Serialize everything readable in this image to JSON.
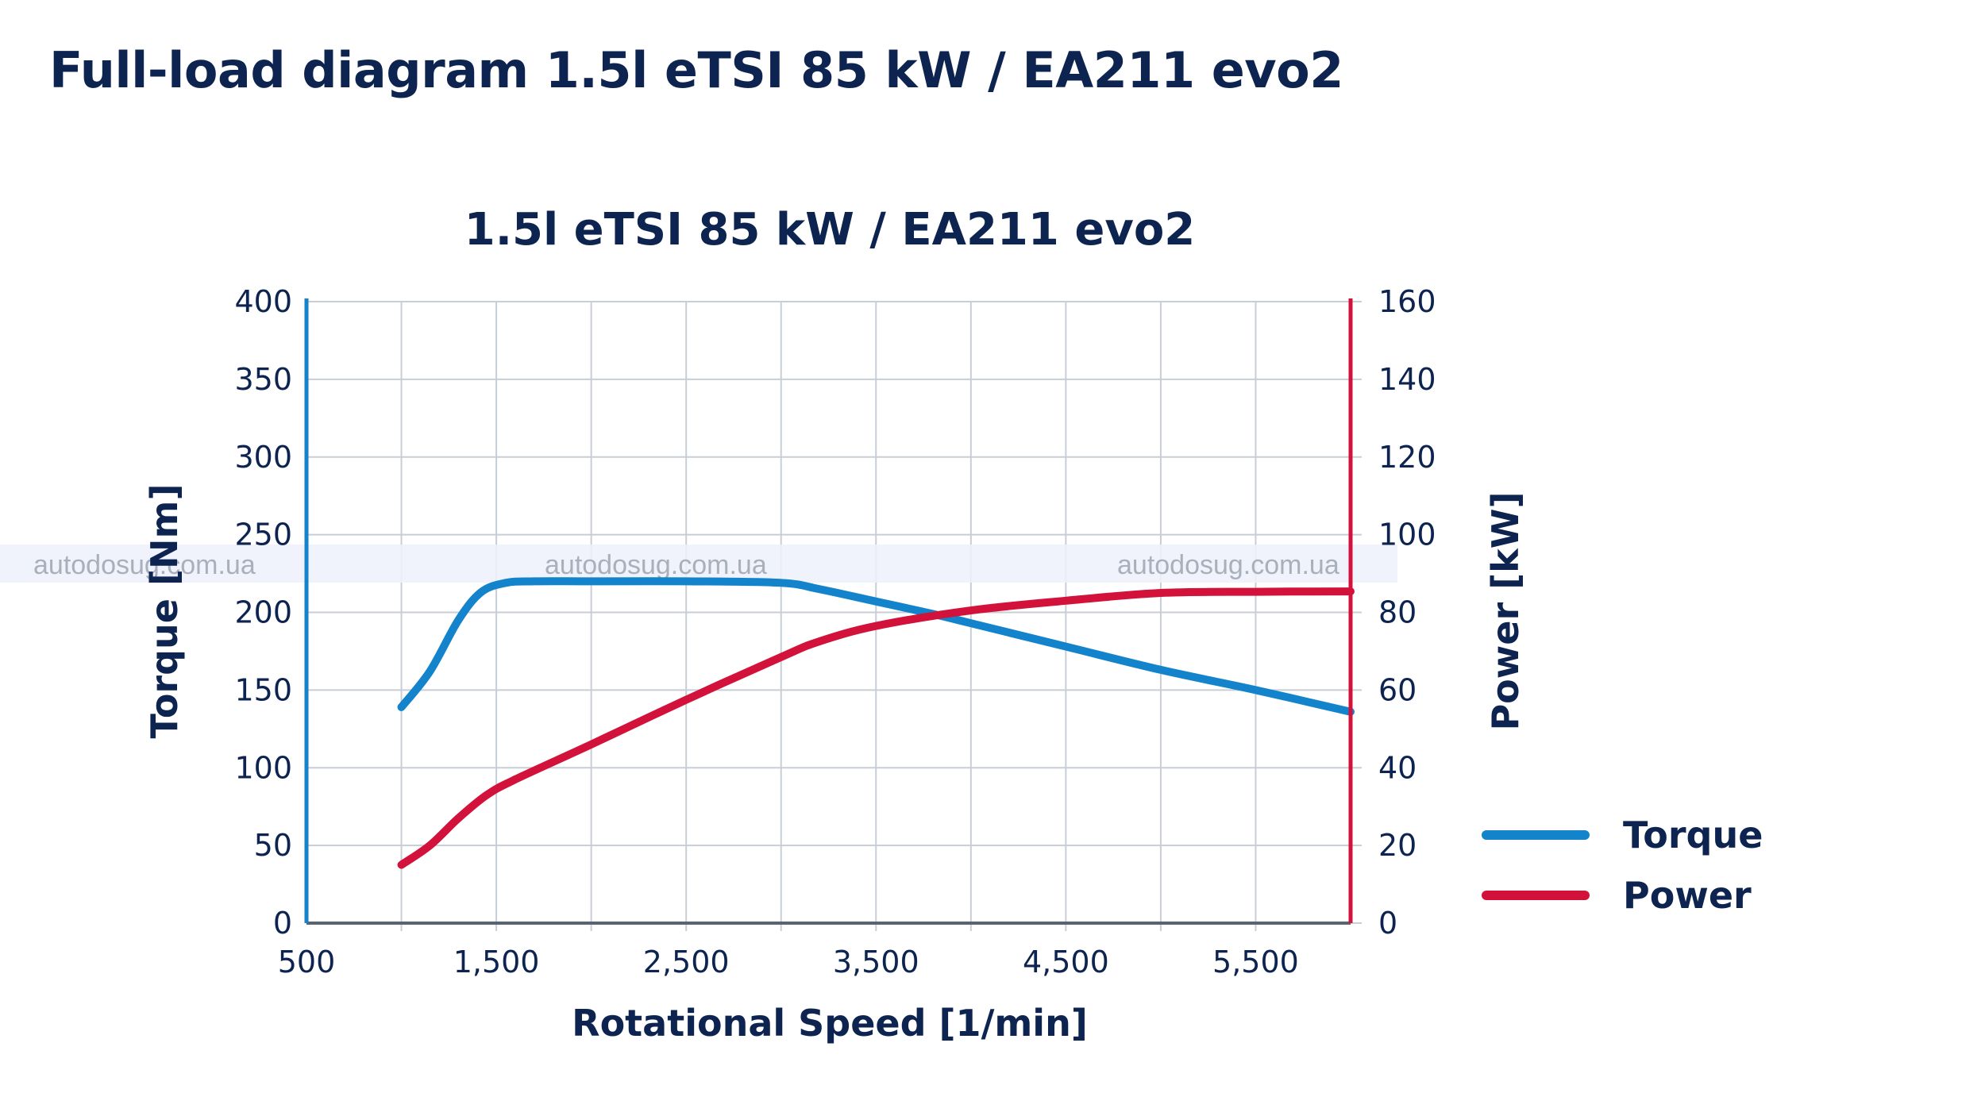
{
  "page": {
    "title": "Full-load diagram 1.5l eTSI 85 kW / EA211 evo2"
  },
  "watermark": {
    "text": "autodosug.com.ua"
  },
  "colors": {
    "torque": "#1383cb",
    "power": "#d3123c",
    "text": "#0d2350",
    "grid": "#c8ced6"
  },
  "chart_data": {
    "type": "line",
    "title": "1.5l eTSI 85 kW / EA211 evo2",
    "xlabel": "Rotational Speed [1/min]",
    "ylabel": "Torque [Nm]",
    "y2label": "Power [kW]",
    "xlim": [
      500,
      6000
    ],
    "ylim": [
      0,
      400
    ],
    "y2lim": [
      0,
      160
    ],
    "x_ticks": [
      500,
      1500,
      2500,
      3500,
      4500,
      5500
    ],
    "x_tick_labels": [
      "500",
      "1,500",
      "2,500",
      "3,500",
      "4,500",
      "5,500"
    ],
    "x_gridlines": [
      1000,
      1500,
      2000,
      2500,
      3000,
      3500,
      4000,
      4500,
      5000,
      5500
    ],
    "y_ticks": [
      0,
      50,
      100,
      150,
      200,
      250,
      300,
      350,
      400
    ],
    "y_tick_labels": [
      "0",
      "50",
      "100",
      "150",
      "200",
      "250",
      "300",
      "350",
      "400"
    ],
    "y2_ticks": [
      0,
      20,
      40,
      60,
      80,
      100,
      120,
      140,
      160
    ],
    "y2_tick_labels": [
      "0",
      "20",
      "40",
      "60",
      "80",
      "100",
      "120",
      "140",
      "160"
    ],
    "grid": true,
    "legend_position": "right",
    "series": [
      {
        "name": "Torque",
        "axis": "left",
        "color": "#1383cb",
        "x": [
          1000,
          1150,
          1300,
          1420,
          1550,
          1700,
          2000,
          2500,
          3000,
          3200,
          3500,
          3800,
          4000,
          4500,
          5000,
          5500,
          6000
        ],
        "y": [
          139,
          162,
          195,
          213,
          219,
          220,
          220,
          220,
          219,
          215,
          207,
          199,
          193,
          178,
          163,
          150,
          136
        ]
      },
      {
        "name": "Power",
        "axis": "right",
        "color": "#d3123c",
        "x": [
          1000,
          1150,
          1300,
          1450,
          1600,
          2000,
          2500,
          3000,
          3200,
          3500,
          4000,
          4500,
          5000,
          5500,
          6000
        ],
        "y": [
          15,
          20,
          27,
          33,
          37,
          46,
          57.5,
          68.5,
          72.5,
          76.5,
          80.5,
          83,
          85,
          85.3,
          85.4
        ]
      }
    ]
  }
}
